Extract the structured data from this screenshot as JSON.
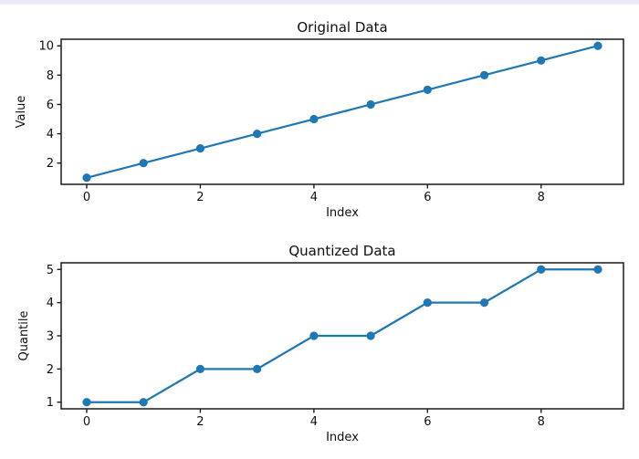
{
  "page": {
    "background": "#ffffff",
    "top_border_color": "#e9ebf7",
    "text_color": "#0f0f0f",
    "spine_color": "#1a1a1a"
  },
  "chart_data": [
    {
      "type": "line",
      "title": "Original Data",
      "xlabel": "Index",
      "ylabel": "Value",
      "x": [
        0,
        1,
        2,
        3,
        4,
        5,
        6,
        7,
        8,
        9
      ],
      "values": [
        1,
        2,
        3,
        4,
        5,
        6,
        7,
        8,
        9,
        10
      ],
      "xticks": [
        0,
        2,
        4,
        6,
        8
      ],
      "yticks": [
        2,
        4,
        6,
        8,
        10
      ],
      "xlim": [
        -0.45,
        9.45
      ],
      "ylim": [
        0.55,
        10.45
      ],
      "line_color": "#1f77b4",
      "marker": "o",
      "grid": false,
      "legend_position": "none"
    },
    {
      "type": "line",
      "title": "Quantized Data",
      "xlabel": "Index",
      "ylabel": "Quantile",
      "x": [
        0,
        1,
        2,
        3,
        4,
        5,
        6,
        7,
        8,
        9
      ],
      "values": [
        1,
        1,
        2,
        2,
        3,
        3,
        4,
        4,
        5,
        5
      ],
      "xticks": [
        0,
        2,
        4,
        6,
        8
      ],
      "yticks": [
        1,
        2,
        3,
        4,
        5
      ],
      "xlim": [
        -0.45,
        9.45
      ],
      "ylim": [
        0.8,
        5.2
      ],
      "line_color": "#1f77b4",
      "marker": "o",
      "grid": false,
      "legend_position": "none"
    }
  ]
}
